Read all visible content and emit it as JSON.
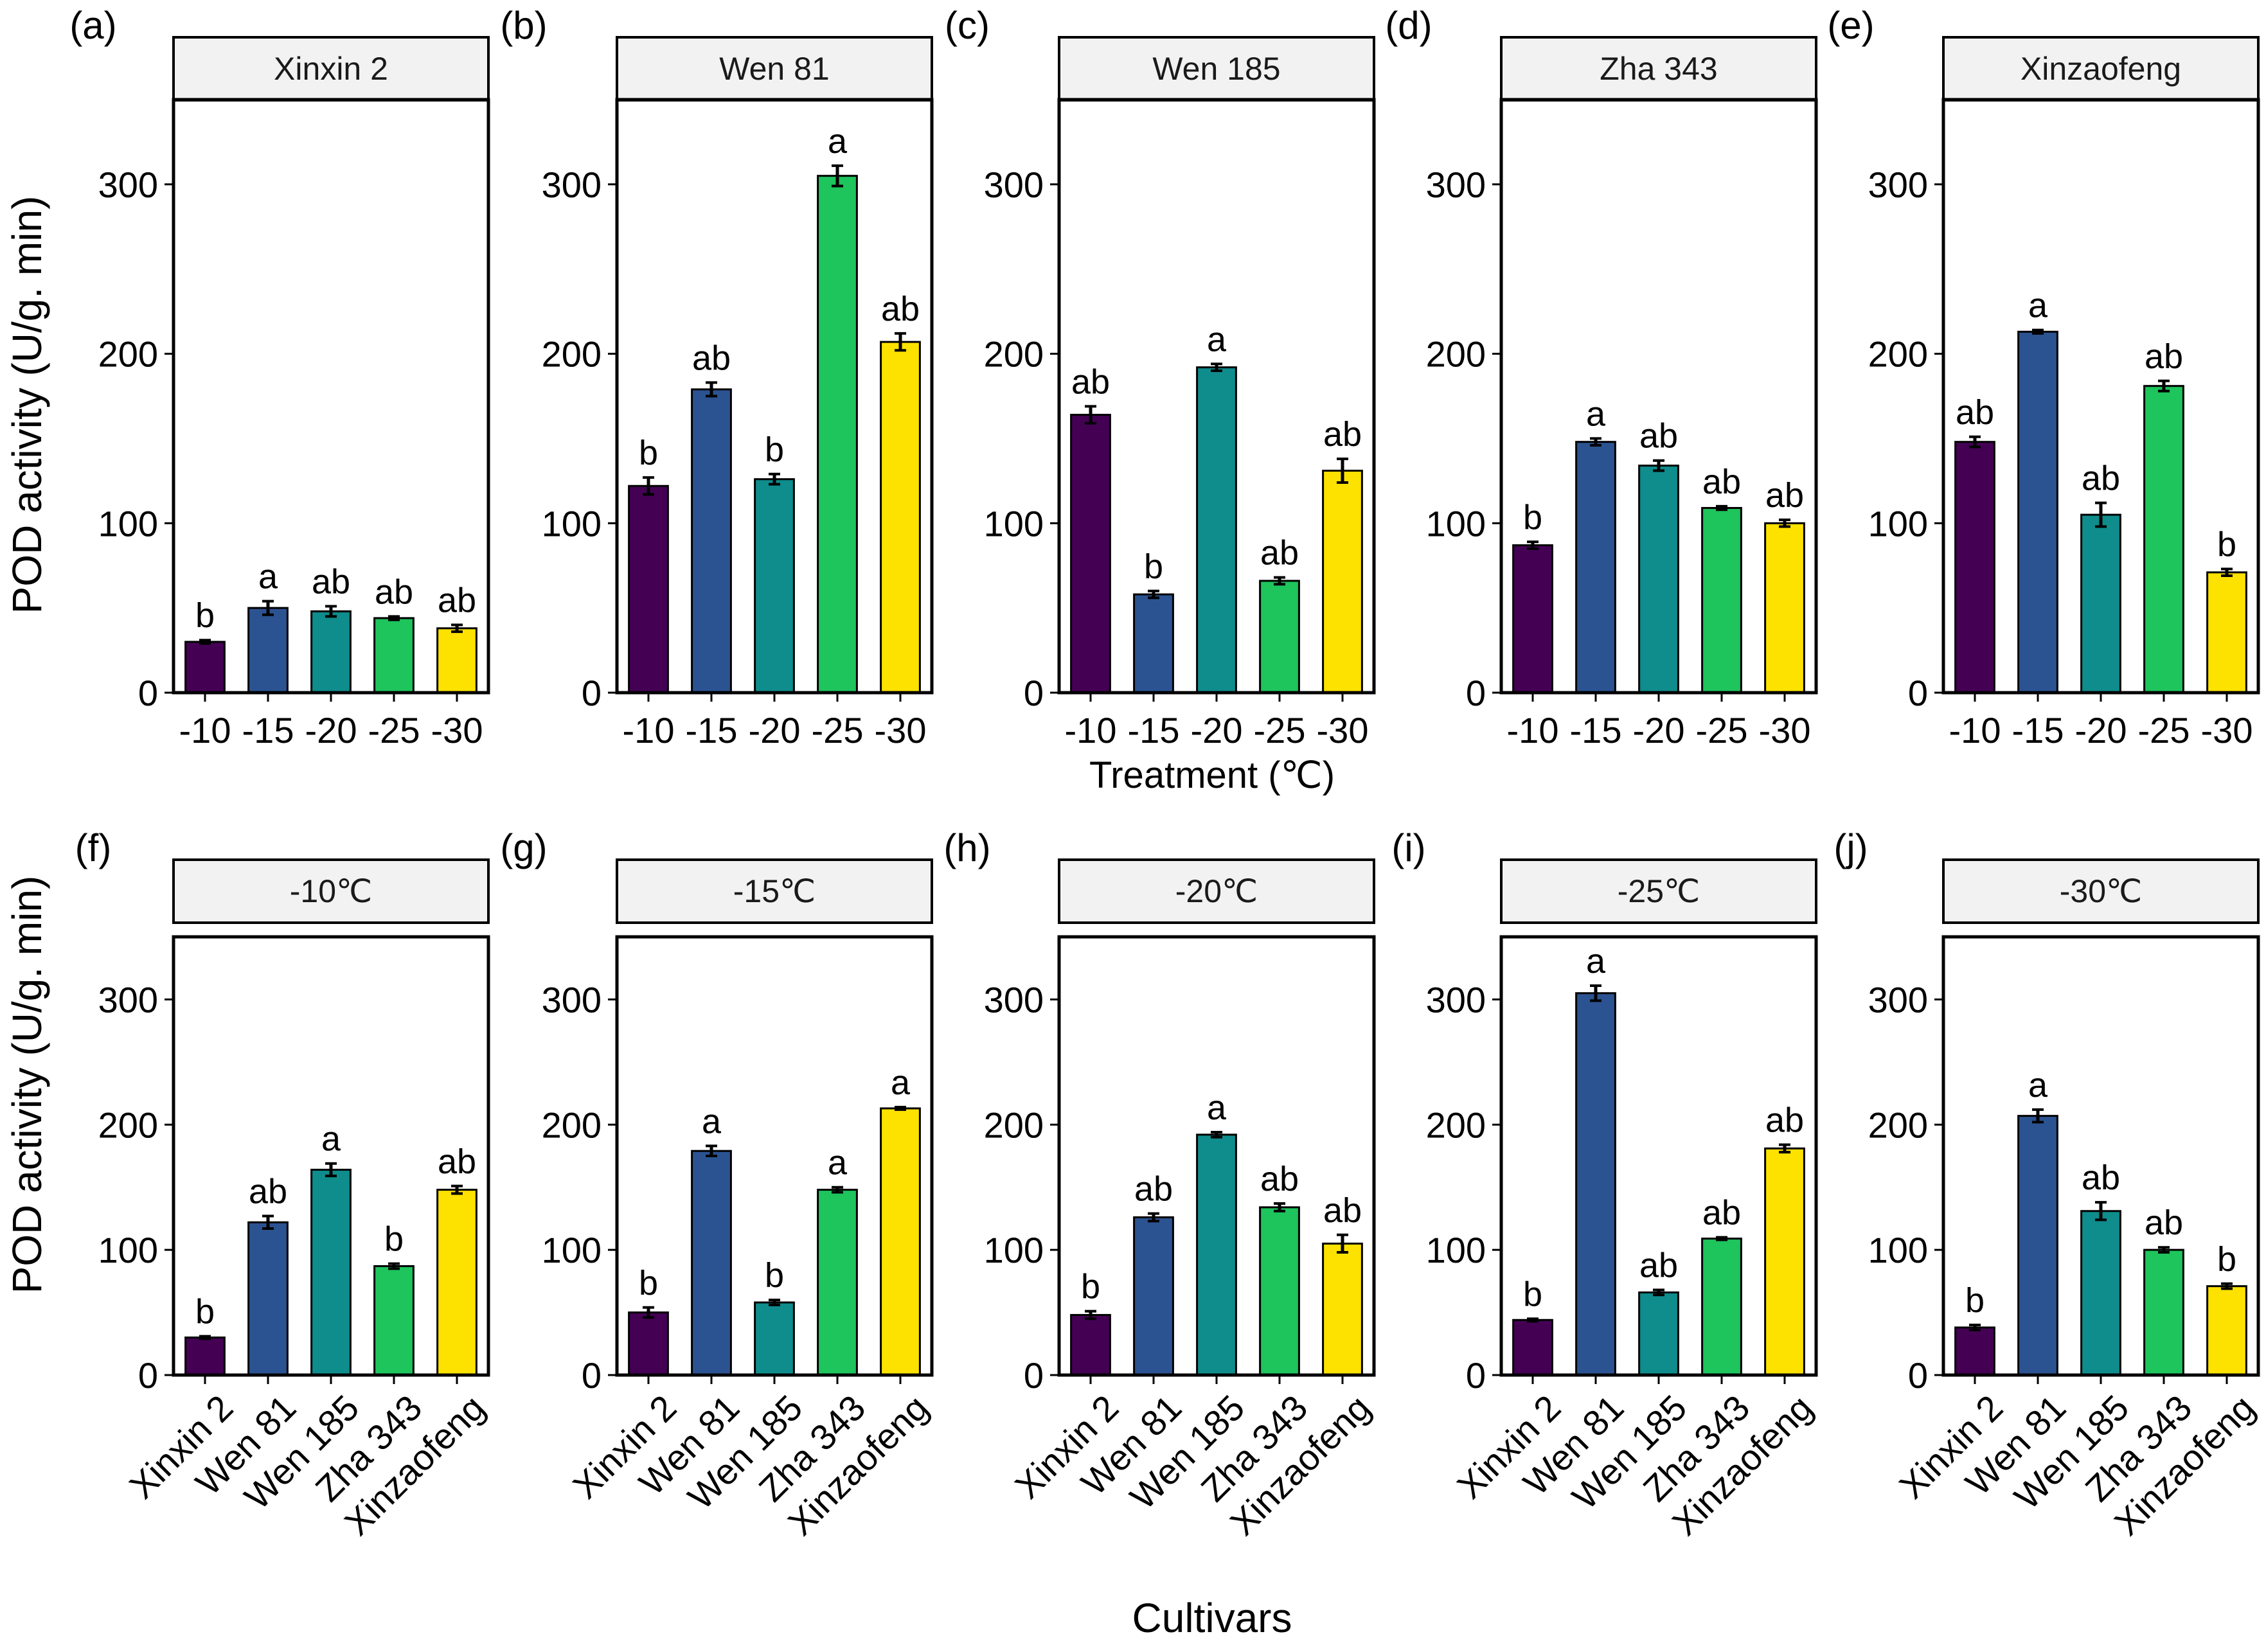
{
  "figure": {
    "ylabel": "POD activity (U/g. min)",
    "top_row_xlabel": "Treatment (℃)",
    "bottom_row_xlabel": "Cultivars",
    "y_ticks": [
      "0",
      "100",
      "200",
      "300"
    ],
    "colors": [
      "#440154",
      "#2c5391",
      "#0f8c8c",
      "#1ec45c",
      "#fde200"
    ],
    "frame_color": "#000000",
    "strip_fill": "#f2f2f2"
  },
  "chart_data": [
    {
      "type": "bar",
      "panel": "(a)",
      "title": "Xinxin 2",
      "xlabel": "Treatment (℃)",
      "ylabel": "POD activity (U/g. min)",
      "ylim": [
        0,
        350
      ],
      "categories": [
        "-10",
        "-15",
        "-20",
        "-25",
        "-30"
      ],
      "values": [
        30,
        50,
        48,
        44,
        38
      ],
      "errors": [
        1,
        4,
        3,
        1,
        2
      ],
      "letters": [
        "b",
        "a",
        "ab",
        "ab",
        "ab"
      ]
    },
    {
      "type": "bar",
      "panel": "(b)",
      "title": "Wen 81",
      "xlabel": "Treatment (℃)",
      "ylabel": "POD activity (U/g. min)",
      "ylim": [
        0,
        350
      ],
      "categories": [
        "-10",
        "-15",
        "-20",
        "-25",
        "-30"
      ],
      "values": [
        122,
        179,
        126,
        305,
        207
      ],
      "errors": [
        5,
        4,
        3,
        6,
        5
      ],
      "letters": [
        "b",
        "ab",
        "b",
        "a",
        "ab"
      ]
    },
    {
      "type": "bar",
      "panel": "(c)",
      "title": "Wen 185",
      "xlabel": "Treatment (℃)",
      "ylabel": "POD activity (U/g. min)",
      "ylim": [
        0,
        350
      ],
      "categories": [
        "-10",
        "-15",
        "-20",
        "-25",
        "-30"
      ],
      "values": [
        164,
        58,
        192,
        66,
        131
      ],
      "errors": [
        5,
        2,
        2,
        2,
        7
      ],
      "letters": [
        "ab",
        "b",
        "a",
        "ab",
        "ab"
      ]
    },
    {
      "type": "bar",
      "panel": "(d)",
      "title": "Zha 343",
      "xlabel": "Treatment (℃)",
      "ylabel": "POD activity (U/g. min)",
      "ylim": [
        0,
        350
      ],
      "categories": [
        "-10",
        "-15",
        "-20",
        "-25",
        "-30"
      ],
      "values": [
        87,
        148,
        134,
        109,
        100
      ],
      "errors": [
        2,
        2,
        3,
        1,
        2
      ],
      "letters": [
        "b",
        "a",
        "ab",
        "ab",
        "ab"
      ]
    },
    {
      "type": "bar",
      "panel": "(e)",
      "title": "Xinzaofeng",
      "xlabel": "Treatment (℃)",
      "ylabel": "POD activity (U/g. min)",
      "ylim": [
        0,
        350
      ],
      "categories": [
        "-10",
        "-15",
        "-20",
        "-25",
        "-30"
      ],
      "values": [
        148,
        213,
        105,
        181,
        71
      ],
      "errors": [
        3,
        1,
        7,
        3,
        2
      ],
      "letters": [
        "ab",
        "a",
        "ab",
        "ab",
        "b"
      ]
    },
    {
      "type": "bar",
      "panel": "(f)",
      "title": "-10℃",
      "xlabel": "Cultivars",
      "ylabel": "POD activity (U/g. min)",
      "ylim": [
        0,
        350
      ],
      "categories": [
        "Xinxin 2",
        "Wen 81",
        "Wen 185",
        "Zha 343",
        "Xinzaofeng"
      ],
      "values": [
        30,
        122,
        164,
        87,
        148
      ],
      "errors": [
        1,
        5,
        5,
        2,
        3
      ],
      "letters": [
        "b",
        "ab",
        "a",
        "b",
        "ab"
      ]
    },
    {
      "type": "bar",
      "panel": "(g)",
      "title": "-15℃",
      "xlabel": "Cultivars",
      "ylabel": "POD activity (U/g. min)",
      "ylim": [
        0,
        350
      ],
      "categories": [
        "Xinxin 2",
        "Wen 81",
        "Wen 185",
        "Zha 343",
        "Xinzaofeng"
      ],
      "values": [
        50,
        179,
        58,
        148,
        213
      ],
      "errors": [
        4,
        4,
        2,
        2,
        1
      ],
      "letters": [
        "b",
        "a",
        "b",
        "a",
        "a"
      ]
    },
    {
      "type": "bar",
      "panel": "(h)",
      "title": "-20℃",
      "xlabel": "Cultivars",
      "ylabel": "POD activity (U/g. min)",
      "ylim": [
        0,
        350
      ],
      "categories": [
        "Xinxin 2",
        "Wen 81",
        "Wen 185",
        "Zha 343",
        "Xinzaofeng"
      ],
      "values": [
        48,
        126,
        192,
        134,
        105
      ],
      "errors": [
        3,
        3,
        2,
        3,
        7
      ],
      "letters": [
        "b",
        "ab",
        "a",
        "ab",
        "ab"
      ]
    },
    {
      "type": "bar",
      "panel": "(i)",
      "title": "-25℃",
      "xlabel": "Cultivars",
      "ylabel": "POD activity (U/g. min)",
      "ylim": [
        0,
        350
      ],
      "categories": [
        "Xinxin 2",
        "Wen 81",
        "Wen 185",
        "Zha 343",
        "Xinzaofeng"
      ],
      "values": [
        44,
        305,
        66,
        109,
        181
      ],
      "errors": [
        1,
        6,
        2,
        1,
        3
      ],
      "letters": [
        "b",
        "a",
        "ab",
        "ab",
        "ab"
      ]
    },
    {
      "type": "bar",
      "panel": "(j)",
      "title": "-30℃",
      "xlabel": "Cultivars",
      "ylabel": "POD activity (U/g. min)",
      "ylim": [
        0,
        350
      ],
      "categories": [
        "Xinxin 2",
        "Wen 81",
        "Wen 185",
        "Zha 343",
        "Xinzaofeng"
      ],
      "values": [
        38,
        207,
        131,
        100,
        71
      ],
      "errors": [
        2,
        5,
        7,
        2,
        2
      ],
      "letters": [
        "b",
        "a",
        "ab",
        "ab",
        "b"
      ]
    }
  ]
}
